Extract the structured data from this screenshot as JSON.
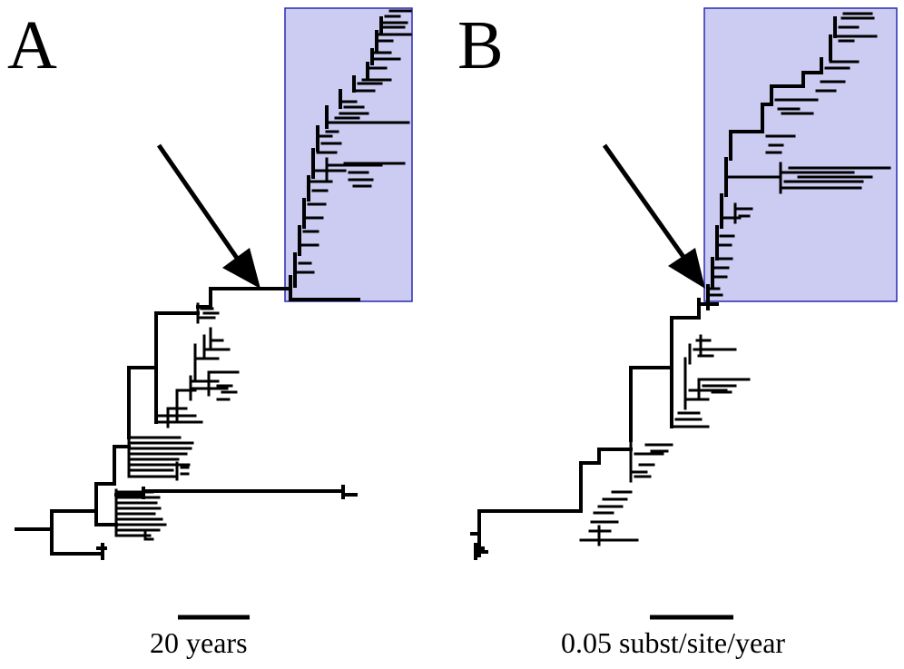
{
  "panels": [
    {
      "letter": "A",
      "scale_label": "20 years"
    },
    {
      "letter": "B",
      "scale_label": "0.05 subst/site/year"
    }
  ],
  "colors": {
    "highlight_fill": "#cccbf2",
    "highlight_border": "#2a2ab3",
    "branches": "#000000"
  }
}
